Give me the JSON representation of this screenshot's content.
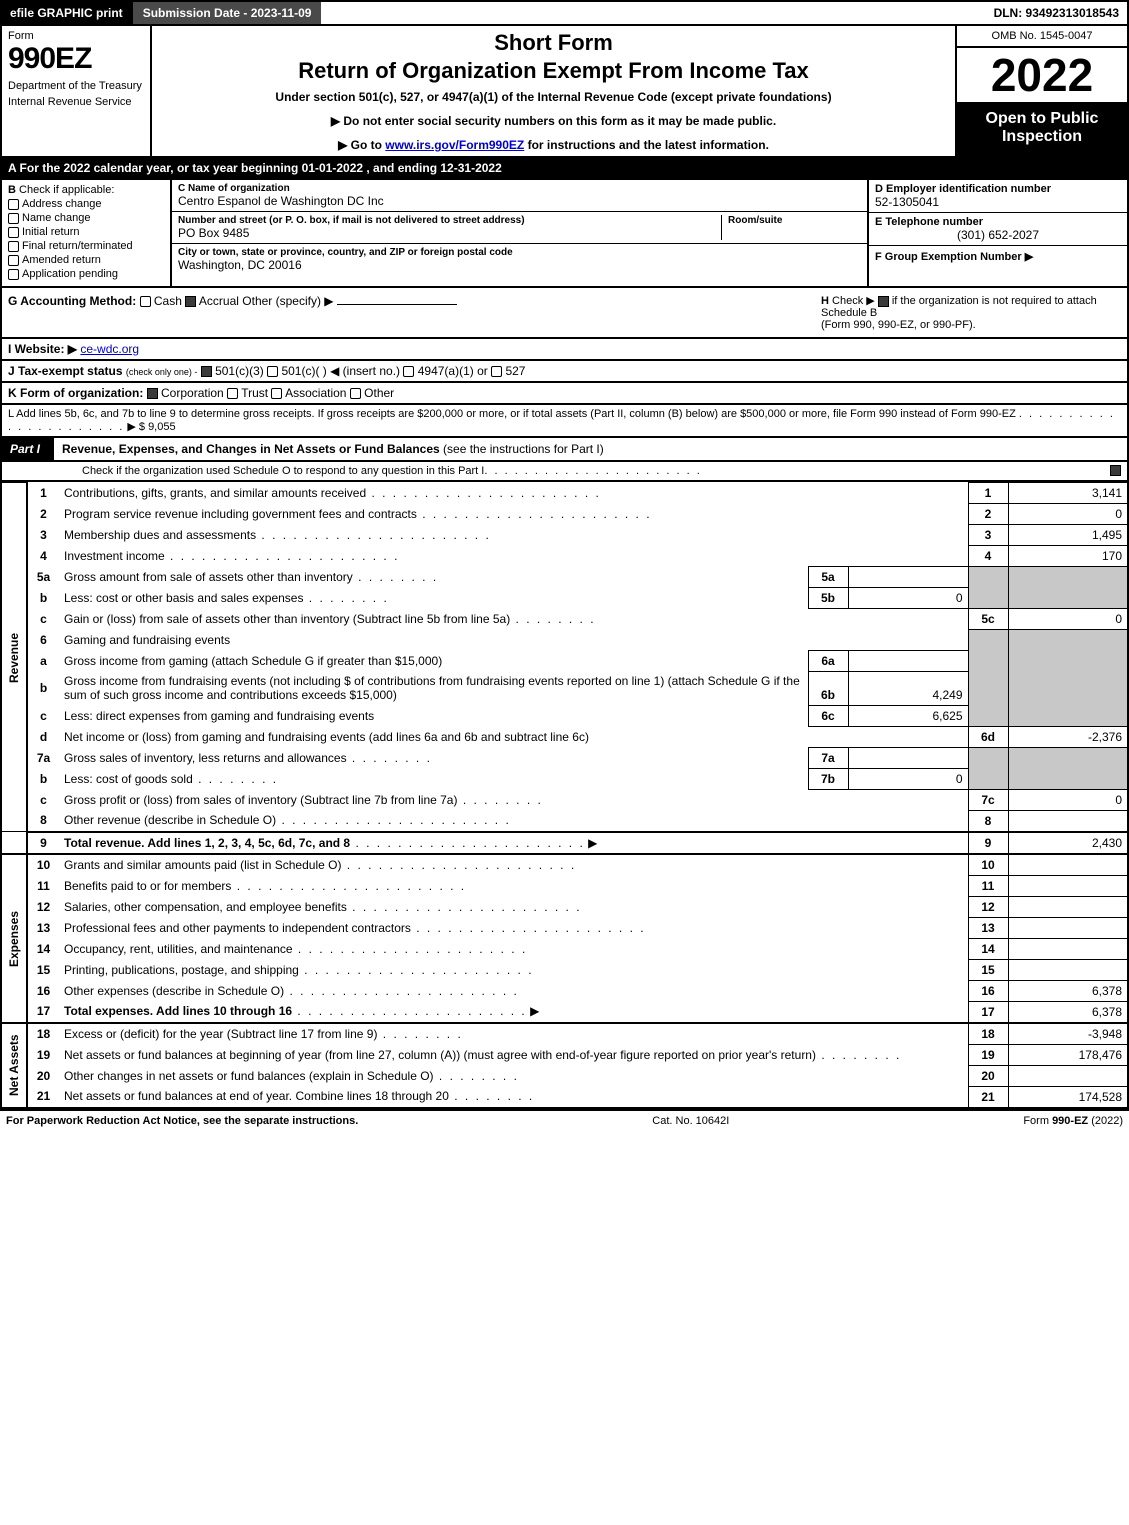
{
  "topbar": {
    "efile": "efile GRAPHIC print",
    "submission": "Submission Date - 2023-11-09",
    "dln": "DLN: 93492313018543"
  },
  "header": {
    "form_label": "Form",
    "form_number": "990EZ",
    "dept1": "Department of the Treasury",
    "dept2": "Internal Revenue Service",
    "title_short": "Short Form",
    "title_main": "Return of Organization Exempt From Income Tax",
    "subtitle": "Under section 501(c), 527, or 4947(a)(1) of the Internal Revenue Code (except private foundations)",
    "instr1": "▶ Do not enter social security numbers on this form as it may be made public.",
    "instr2_pre": "▶ Go to ",
    "instr2_link": "www.irs.gov/Form990EZ",
    "instr2_post": " for instructions and the latest information.",
    "omb": "OMB No. 1545-0047",
    "year": "2022",
    "open": "Open to Public Inspection"
  },
  "rowA": "A  For the 2022 calendar year, or tax year beginning 01-01-2022 , and ending 12-31-2022",
  "B": {
    "label": "B",
    "check_label": "Check if applicable:",
    "opts": [
      "Address change",
      "Name change",
      "Initial return",
      "Final return/terminated",
      "Amended return",
      "Application pending"
    ]
  },
  "C": {
    "name_label": "C Name of organization",
    "name": "Centro Espanol de Washington DC Inc",
    "street_label": "Number and street (or P. O. box, if mail is not delivered to street address)",
    "street": "PO Box 9485",
    "room_label": "Room/suite",
    "city_label": "City or town, state or province, country, and ZIP or foreign postal code",
    "city": "Washington, DC  20016"
  },
  "D": {
    "label": "D Employer identification number",
    "val": "52-1305041"
  },
  "E": {
    "label": "E Telephone number",
    "val": "(301) 652-2027"
  },
  "F": {
    "label": "F Group Exemption Number  ▶",
    "val": ""
  },
  "G": {
    "label": "G Accounting Method:",
    "cash": "Cash",
    "accrual": "Accrual",
    "other": "Other (specify) ▶"
  },
  "H": {
    "label": "H",
    "text1": "Check ▶",
    "text2": "if the organization is not required to attach Schedule B",
    "text3": "(Form 990, 990-EZ, or 990-PF)."
  },
  "I": {
    "label": "I Website: ▶",
    "val": "ce-wdc.org"
  },
  "J": {
    "label": "J Tax-exempt status",
    "small": "(check only one) -",
    "o1": "501(c)(3)",
    "o2": "501(c)(  ) ◀ (insert no.)",
    "o3": "4947(a)(1) or",
    "o4": "527"
  },
  "K": {
    "label": "K Form of organization:",
    "o1": "Corporation",
    "o2": "Trust",
    "o3": "Association",
    "o4": "Other"
  },
  "L": {
    "text": "L Add lines 5b, 6c, and 7b to line 9 to determine gross receipts. If gross receipts are $200,000 or more, or if total assets (Part II, column (B) below) are $500,000 or more, file Form 990 instead of Form 990-EZ",
    "arrow": "▶ $",
    "val": "9,055"
  },
  "part1": {
    "tab": "Part I",
    "title": "Revenue, Expenses, and Changes in Net Assets or Fund Balances",
    "title_paren": "(see the instructions for Part I)",
    "sub": "Check if the organization used Schedule O to respond to any question in this Part I"
  },
  "sides": {
    "revenue": "Revenue",
    "expenses": "Expenses",
    "net": "Net Assets"
  },
  "lines": {
    "l1": {
      "n": "1",
      "d": "Contributions, gifts, grants, and similar amounts received",
      "rn": "1",
      "rv": "3,141"
    },
    "l2": {
      "n": "2",
      "d": "Program service revenue including government fees and contracts",
      "rn": "2",
      "rv": "0"
    },
    "l3": {
      "n": "3",
      "d": "Membership dues and assessments",
      "rn": "3",
      "rv": "1,495"
    },
    "l4": {
      "n": "4",
      "d": "Investment income",
      "rn": "4",
      "rv": "170"
    },
    "l5a": {
      "n": "5a",
      "d": "Gross amount from sale of assets other than inventory",
      "sn": "5a",
      "sv": ""
    },
    "l5b": {
      "n": "b",
      "d": "Less: cost or other basis and sales expenses",
      "sn": "5b",
      "sv": "0"
    },
    "l5c": {
      "n": "c",
      "d": "Gain or (loss) from sale of assets other than inventory (Subtract line 5b from line 5a)",
      "rn": "5c",
      "rv": "0"
    },
    "l6": {
      "n": "6",
      "d": "Gaming and fundraising events"
    },
    "l6a": {
      "n": "a",
      "d": "Gross income from gaming (attach Schedule G if greater than $15,000)",
      "sn": "6a",
      "sv": ""
    },
    "l6b": {
      "n": "b",
      "d1": "Gross income from fundraising events (not including $",
      "d2": "of contributions from fundraising events reported on line 1) (attach Schedule G if the sum of such gross income and contributions exceeds $15,000)",
      "sn": "6b",
      "sv": "4,249"
    },
    "l6c": {
      "n": "c",
      "d": "Less: direct expenses from gaming and fundraising events",
      "sn": "6c",
      "sv": "6,625"
    },
    "l6d": {
      "n": "d",
      "d": "Net income or (loss) from gaming and fundraising events (add lines 6a and 6b and subtract line 6c)",
      "rn": "6d",
      "rv": "-2,376"
    },
    "l7a": {
      "n": "7a",
      "d": "Gross sales of inventory, less returns and allowances",
      "sn": "7a",
      "sv": ""
    },
    "l7b": {
      "n": "b",
      "d": "Less: cost of goods sold",
      "sn": "7b",
      "sv": "0"
    },
    "l7c": {
      "n": "c",
      "d": "Gross profit or (loss) from sales of inventory (Subtract line 7b from line 7a)",
      "rn": "7c",
      "rv": "0"
    },
    "l8": {
      "n": "8",
      "d": "Other revenue (describe in Schedule O)",
      "rn": "8",
      "rv": ""
    },
    "l9": {
      "n": "9",
      "d": "Total revenue. Add lines 1, 2, 3, 4, 5c, 6d, 7c, and 8",
      "rn": "9",
      "rv": "2,430"
    },
    "l10": {
      "n": "10",
      "d": "Grants and similar amounts paid (list in Schedule O)",
      "rn": "10",
      "rv": ""
    },
    "l11": {
      "n": "11",
      "d": "Benefits paid to or for members",
      "rn": "11",
      "rv": ""
    },
    "l12": {
      "n": "12",
      "d": "Salaries, other compensation, and employee benefits",
      "rn": "12",
      "rv": ""
    },
    "l13": {
      "n": "13",
      "d": "Professional fees and other payments to independent contractors",
      "rn": "13",
      "rv": ""
    },
    "l14": {
      "n": "14",
      "d": "Occupancy, rent, utilities, and maintenance",
      "rn": "14",
      "rv": ""
    },
    "l15": {
      "n": "15",
      "d": "Printing, publications, postage, and shipping",
      "rn": "15",
      "rv": ""
    },
    "l16": {
      "n": "16",
      "d": "Other expenses (describe in Schedule O)",
      "rn": "16",
      "rv": "6,378"
    },
    "l17": {
      "n": "17",
      "d": "Total expenses. Add lines 10 through 16",
      "rn": "17",
      "rv": "6,378"
    },
    "l18": {
      "n": "18",
      "d": "Excess or (deficit) for the year (Subtract line 17 from line 9)",
      "rn": "18",
      "rv": "-3,948"
    },
    "l19": {
      "n": "19",
      "d": "Net assets or fund balances at beginning of year (from line 27, column (A)) (must agree with end-of-year figure reported on prior year's return)",
      "rn": "19",
      "rv": "178,476"
    },
    "l20": {
      "n": "20",
      "d": "Other changes in net assets or fund balances (explain in Schedule O)",
      "rn": "20",
      "rv": ""
    },
    "l21": {
      "n": "21",
      "d": "Net assets or fund balances at end of year. Combine lines 18 through 20",
      "rn": "21",
      "rv": "174,528"
    }
  },
  "footer": {
    "left": "For Paperwork Reduction Act Notice, see the separate instructions.",
    "mid": "Cat. No. 10642I",
    "right_pre": "Form ",
    "right_bold": "990-EZ",
    "right_post": " (2022)"
  }
}
